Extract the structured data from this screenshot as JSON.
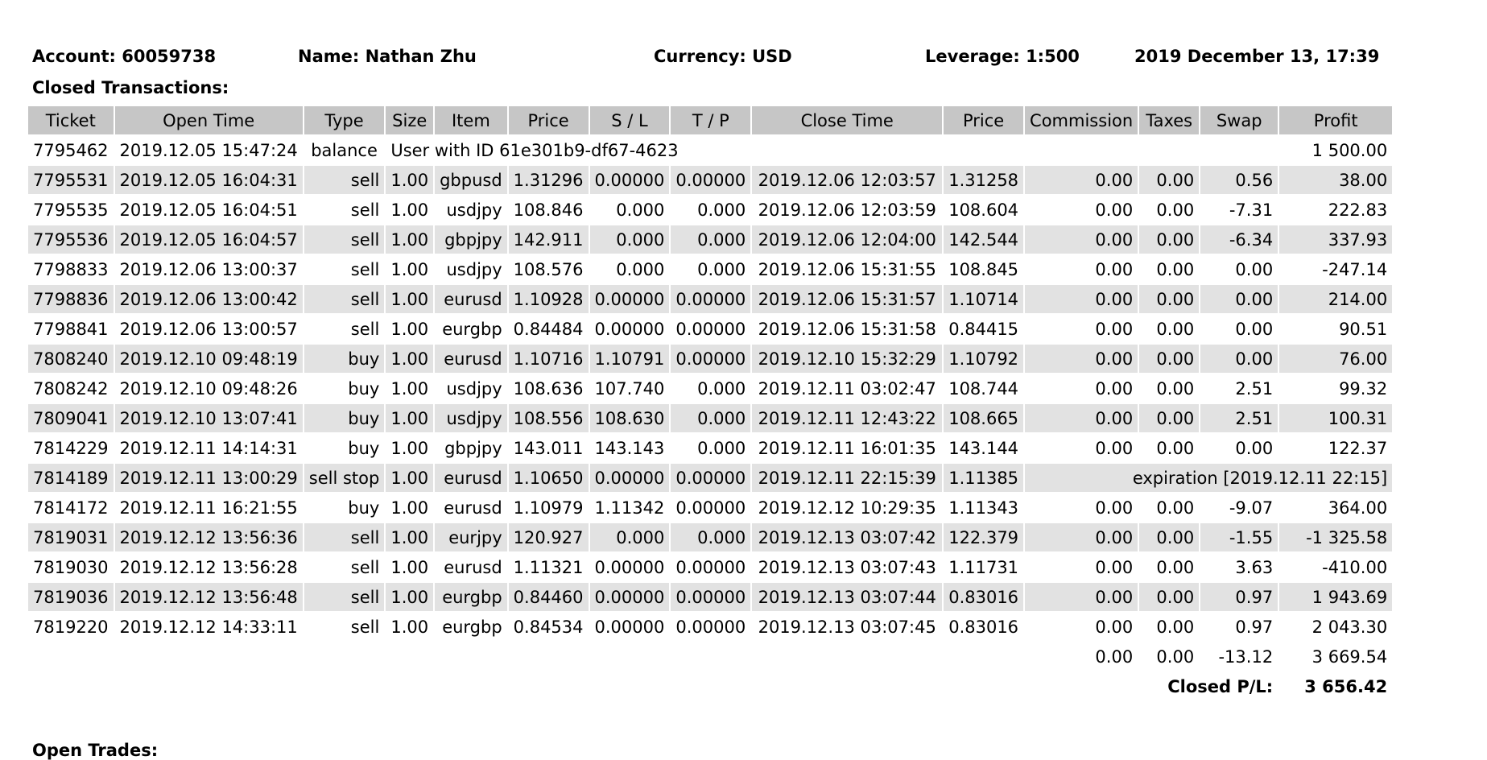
{
  "header": {
    "account": "Account: 60059738",
    "name": "Name: Nathan Zhu",
    "currency": "Currency: USD",
    "leverage": "Leverage: 1:500",
    "datetime": "2019 December 13, 17:39"
  },
  "closed": {
    "title": "Closed Transactions:",
    "columns": [
      "Ticket",
      "Open Time",
      "Type",
      "Size",
      "Item",
      "Price",
      "S / L",
      "T / P",
      "Close Time",
      "Price",
      "Commission",
      "Taxes",
      "Swap",
      "Profit"
    ],
    "balance_row": {
      "ticket": "7795462",
      "time": "2019.12.05 15:47:24",
      "type": "balance",
      "comment": "User with ID 61e301b9-df67-4623",
      "profit": "1 500.00"
    },
    "rows": [
      {
        "ticket": "7795531",
        "open": "2019.12.05 16:04:31",
        "type": "sell",
        "size": "1.00",
        "item": "gbpusd",
        "price": "1.31296",
        "sl": "0.00000",
        "tp": "0.00000",
        "close": "2019.12.06 12:03:57",
        "cprice": "1.31258",
        "comm": "0.00",
        "tax": "0.00",
        "swap": "0.56",
        "profit": "38.00"
      },
      {
        "ticket": "7795535",
        "open": "2019.12.05 16:04:51",
        "type": "sell",
        "size": "1.00",
        "item": "usdjpy",
        "price": "108.846",
        "sl": "0.000",
        "tp": "0.000",
        "close": "2019.12.06 12:03:59",
        "cprice": "108.604",
        "comm": "0.00",
        "tax": "0.00",
        "swap": "-7.31",
        "profit": "222.83"
      },
      {
        "ticket": "7795536",
        "open": "2019.12.05 16:04:57",
        "type": "sell",
        "size": "1.00",
        "item": "gbpjpy",
        "price": "142.911",
        "sl": "0.000",
        "tp": "0.000",
        "close": "2019.12.06 12:04:00",
        "cprice": "142.544",
        "comm": "0.00",
        "tax": "0.00",
        "swap": "-6.34",
        "profit": "337.93"
      },
      {
        "ticket": "7798833",
        "open": "2019.12.06 13:00:37",
        "type": "sell",
        "size": "1.00",
        "item": "usdjpy",
        "price": "108.576",
        "sl": "0.000",
        "tp": "0.000",
        "close": "2019.12.06 15:31:55",
        "cprice": "108.845",
        "comm": "0.00",
        "tax": "0.00",
        "swap": "0.00",
        "profit": "-247.14"
      },
      {
        "ticket": "7798836",
        "open": "2019.12.06 13:00:42",
        "type": "sell",
        "size": "1.00",
        "item": "eurusd",
        "price": "1.10928",
        "sl": "0.00000",
        "tp": "0.00000",
        "close": "2019.12.06 15:31:57",
        "cprice": "1.10714",
        "comm": "0.00",
        "tax": "0.00",
        "swap": "0.00",
        "profit": "214.00"
      },
      {
        "ticket": "7798841",
        "open": "2019.12.06 13:00:57",
        "type": "sell",
        "size": "1.00",
        "item": "eurgbp",
        "price": "0.84484",
        "sl": "0.00000",
        "tp": "0.00000",
        "close": "2019.12.06 15:31:58",
        "cprice": "0.84415",
        "comm": "0.00",
        "tax": "0.00",
        "swap": "0.00",
        "profit": "90.51"
      },
      {
        "ticket": "7808240",
        "open": "2019.12.10 09:48:19",
        "type": "buy",
        "size": "1.00",
        "item": "eurusd",
        "price": "1.10716",
        "sl": "1.10791",
        "tp": "0.00000",
        "close": "2019.12.10 15:32:29",
        "cprice": "1.10792",
        "comm": "0.00",
        "tax": "0.00",
        "swap": "0.00",
        "profit": "76.00"
      },
      {
        "ticket": "7808242",
        "open": "2019.12.10 09:48:26",
        "type": "buy",
        "size": "1.00",
        "item": "usdjpy",
        "price": "108.636",
        "sl": "107.740",
        "tp": "0.000",
        "close": "2019.12.11 03:02:47",
        "cprice": "108.744",
        "comm": "0.00",
        "tax": "0.00",
        "swap": "2.51",
        "profit": "99.32"
      },
      {
        "ticket": "7809041",
        "open": "2019.12.10 13:07:41",
        "type": "buy",
        "size": "1.00",
        "item": "usdjpy",
        "price": "108.556",
        "sl": "108.630",
        "tp": "0.000",
        "close": "2019.12.11 12:43:22",
        "cprice": "108.665",
        "comm": "0.00",
        "tax": "0.00",
        "swap": "2.51",
        "profit": "100.31"
      },
      {
        "ticket": "7814229",
        "open": "2019.12.11 14:14:31",
        "type": "buy",
        "size": "1.00",
        "item": "gbpjpy",
        "price": "143.011",
        "sl": "143.143",
        "tp": "0.000",
        "close": "2019.12.11 16:01:35",
        "cprice": "143.144",
        "comm": "0.00",
        "tax": "0.00",
        "swap": "0.00",
        "profit": "122.37"
      }
    ],
    "expired_row": {
      "ticket": "7814189",
      "open": "2019.12.11 13:00:29",
      "type": "sell stop",
      "size": "1.00",
      "item": "eurusd",
      "price": "1.10650",
      "sl": "0.00000",
      "tp": "0.00000",
      "close": "2019.12.11 22:15:39",
      "cprice": "1.11385",
      "note": "expiration [2019.12.11 22:15]"
    },
    "rows2": [
      {
        "ticket": "7814172",
        "open": "2019.12.11 16:21:55",
        "type": "buy",
        "size": "1.00",
        "item": "eurusd",
        "price": "1.10979",
        "sl": "1.11342",
        "tp": "0.00000",
        "close": "2019.12.12 10:29:35",
        "cprice": "1.11343",
        "comm": "0.00",
        "tax": "0.00",
        "swap": "-9.07",
        "profit": "364.00"
      },
      {
        "ticket": "7819031",
        "open": "2019.12.12 13:56:36",
        "type": "sell",
        "size": "1.00",
        "item": "eurjpy",
        "price": "120.927",
        "sl": "0.000",
        "tp": "0.000",
        "close": "2019.12.13 03:07:42",
        "cprice": "122.379",
        "comm": "0.00",
        "tax": "0.00",
        "swap": "-1.55",
        "profit": "-1 325.58"
      },
      {
        "ticket": "7819030",
        "open": "2019.12.12 13:56:28",
        "type": "sell",
        "size": "1.00",
        "item": "eurusd",
        "price": "1.11321",
        "sl": "0.00000",
        "tp": "0.00000",
        "close": "2019.12.13 03:07:43",
        "cprice": "1.11731",
        "comm": "0.00",
        "tax": "0.00",
        "swap": "3.63",
        "profit": "-410.00"
      },
      {
        "ticket": "7819036",
        "open": "2019.12.12 13:56:48",
        "type": "sell",
        "size": "1.00",
        "item": "eurgbp",
        "price": "0.84460",
        "sl": "0.00000",
        "tp": "0.00000",
        "close": "2019.12.13 03:07:44",
        "cprice": "0.83016",
        "comm": "0.00",
        "tax": "0.00",
        "swap": "0.97",
        "profit": "1 943.69"
      },
      {
        "ticket": "7819220",
        "open": "2019.12.12 14:33:11",
        "type": "sell",
        "size": "1.00",
        "item": "eurgbp",
        "price": "0.84534",
        "sl": "0.00000",
        "tp": "0.00000",
        "close": "2019.12.13 03:07:45",
        "cprice": "0.83016",
        "comm": "0.00",
        "tax": "0.00",
        "swap": "0.97",
        "profit": "2 043.30"
      }
    ],
    "totals": {
      "comm": "0.00",
      "tax": "0.00",
      "swap": "-13.12",
      "profit": "3 669.54"
    },
    "closed_pl_label": "Closed P/L:",
    "closed_pl_value": "3 656.42"
  },
  "open": {
    "title": "Open Trades:"
  }
}
